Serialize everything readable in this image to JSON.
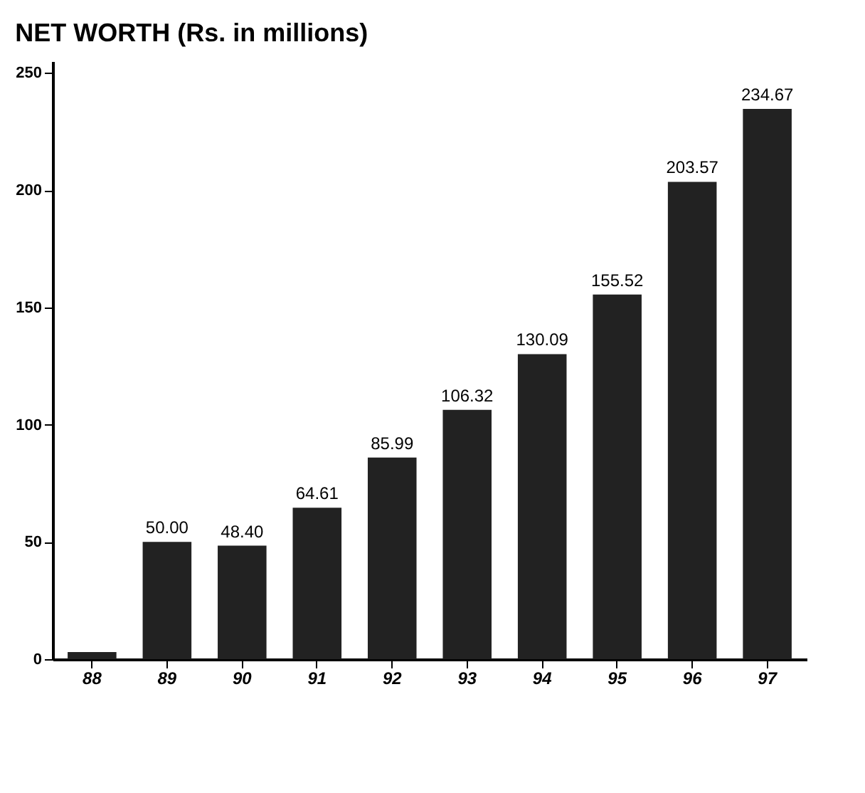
{
  "chart_data": {
    "type": "bar",
    "title": "NET WORTH (Rs. in millions)",
    "categories": [
      "88",
      "89",
      "90",
      "91",
      "92",
      "93",
      "94",
      "95",
      "96",
      "97"
    ],
    "values": [
      3,
      50.0,
      48.4,
      64.61,
      85.99,
      106.32,
      130.09,
      155.52,
      203.57,
      234.67
    ],
    "value_labels": [
      null,
      "50.00",
      "48.40",
      "64.61",
      "85.99",
      "106.32",
      "130.09",
      "155.52",
      "203.57",
      "234.67"
    ],
    "color": "#222222",
    "ylim": [
      0,
      255
    ],
    "yticks": [
      0,
      50,
      100,
      150,
      200,
      250
    ],
    "grid": false
  }
}
